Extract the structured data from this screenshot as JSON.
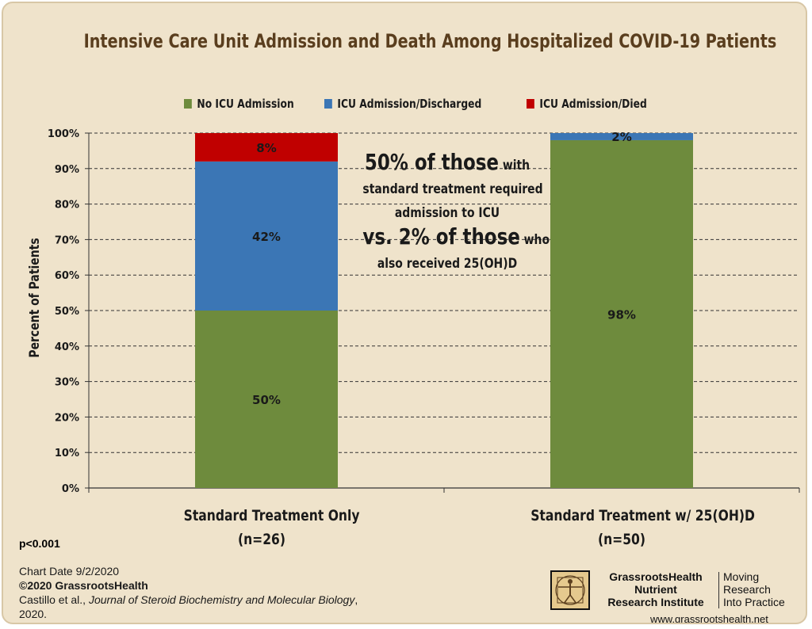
{
  "title": "Intensive Care Unit Admission and Death Among Hospitalized COVID-19 Patients",
  "colors": {
    "no_icu": "#6e8b3d",
    "icu_discharged": "#3b76b5",
    "icu_died": "#c00000",
    "background": "#efe3cb",
    "grid": "#333333"
  },
  "legend": [
    {
      "label": "No ICU Admission",
      "color": "#6e8b3d"
    },
    {
      "label": "ICU Admission/Discharged",
      "color": "#3b76b5"
    },
    {
      "label": "ICU Admission/Died",
      "color": "#c00000"
    }
  ],
  "annotation": {
    "line1_big": "50% of those",
    "line1_small": " with",
    "line2": "standard treatment required",
    "line3": "admission to ICU",
    "line4_big": "vs. 2% of those",
    "line4_small": " who",
    "line5": "also received 25(OH)D"
  },
  "chart_data": {
    "type": "bar",
    "stacked": true,
    "title": "Intensive Care Unit Admission and Death Among Hospitalized COVID-19 Patients",
    "ylabel": "Percent of Patients",
    "ylim": [
      0,
      100
    ],
    "y_ticks": [
      "0%",
      "10%",
      "20%",
      "30%",
      "40%",
      "50%",
      "60%",
      "70%",
      "80%",
      "90%",
      "100%"
    ],
    "categories": [
      "Standard Treatment Only",
      "Standard Treatment w/ 25(OH)D"
    ],
    "category_n": [
      "(n=26)",
      "(n=50)"
    ],
    "series": [
      {
        "name": "No ICU Admission",
        "values": [
          50,
          98
        ],
        "labels": [
          "50%",
          "98%"
        ]
      },
      {
        "name": "ICU Admission/Discharged",
        "values": [
          42,
          2
        ],
        "labels": [
          "42%",
          "2%"
        ]
      },
      {
        "name": "ICU Admission/Died",
        "values": [
          8,
          0
        ],
        "labels": [
          "8%",
          ""
        ]
      }
    ],
    "grid": true,
    "legend_position": "top"
  },
  "pvalue": "p<0.001",
  "footer": {
    "date": "Chart Date 9/2/2020",
    "copyright": "©2020 GrassrootsHealth",
    "cite_authors": "Castillo et al., ",
    "cite_journal": "Journal of Steroid Biochemistry and Molecular Biology",
    "cite_year": ", 2020."
  },
  "brand": {
    "name_line1": "GrassrootsHealth",
    "name_line2": "Nutrient",
    "name_line3": "Research Institute",
    "tag_line1": "Moving",
    "tag_line2": "Research",
    "tag_line3": "Into Practice",
    "url": "www.grassrootshealth.net"
  }
}
